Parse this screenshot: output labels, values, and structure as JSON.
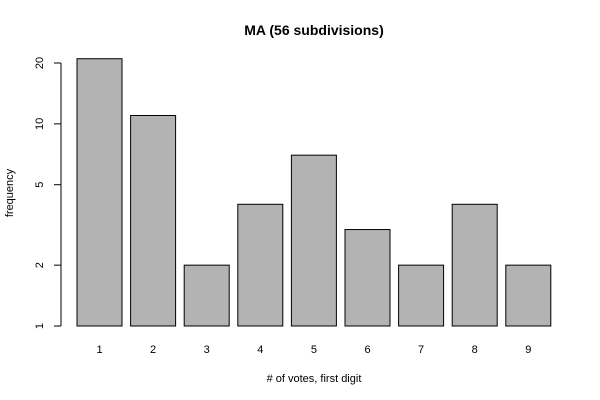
{
  "chart_data": {
    "type": "bar",
    "title": "MA (56 subdivisions)",
    "xlabel": "# of votes, first digit",
    "ylabel": "frequency",
    "categories": [
      "1",
      "2",
      "3",
      "4",
      "5",
      "6",
      "7",
      "8",
      "9"
    ],
    "values": [
      21,
      11,
      2,
      4,
      7,
      3,
      2,
      4,
      2
    ],
    "y_scale": "log",
    "ylim": [
      1,
      22
    ],
    "y_ticks": [
      1,
      2,
      5,
      10,
      20
    ],
    "y_tick_labels": [
      "1",
      "2",
      "5",
      "10",
      "20"
    ],
    "grid": false,
    "bar_color": "#b3b3b3",
    "border_color": "#000000"
  }
}
